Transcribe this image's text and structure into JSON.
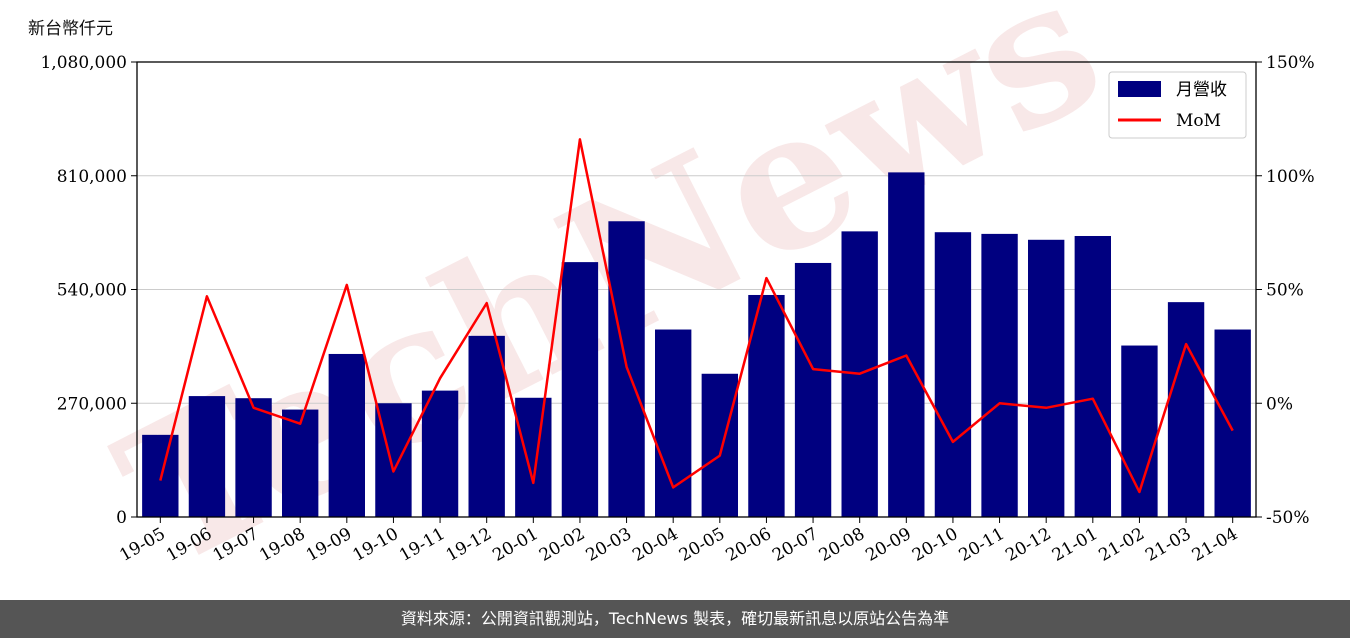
{
  "unit_label": "新台幣仟元",
  "footer_text": "資料來源：公開資訊觀測站，TechNews 製表，確切最新訊息以原站公告為準",
  "watermark_text": "TechNews",
  "chart_data": {
    "type": "bar",
    "categories": [
      "19-05",
      "19-06",
      "19-07",
      "19-08",
      "19-09",
      "19-10",
      "19-11",
      "19-12",
      "20-01",
      "20-02",
      "20-03",
      "20-04",
      "20-05",
      "20-06",
      "20-07",
      "20-08",
      "20-09",
      "20-10",
      "20-11",
      "20-12",
      "21-01",
      "21-02",
      "21-03",
      "21-04"
    ],
    "series": [
      {
        "name": "月營收",
        "type": "bar",
        "axis": "left",
        "color": "#000080",
        "values": [
          195000,
          287000,
          282000,
          255000,
          387000,
          270000,
          300000,
          430000,
          283000,
          605000,
          702000,
          445000,
          340000,
          527000,
          603000,
          678000,
          818000,
          676000,
          672000,
          658000,
          667000,
          407000,
          510000,
          445000
        ]
      },
      {
        "name": "MoM",
        "type": "line",
        "axis": "right",
        "color": "#ff0000",
        "values": [
          -34,
          47,
          -2,
          -9,
          52,
          -30,
          11,
          44,
          -35,
          116,
          16,
          -37,
          -23,
          55,
          15,
          13,
          21,
          -17,
          0,
          -2,
          2,
          -39,
          26,
          -12
        ]
      }
    ],
    "y_left": {
      "min": 0,
      "max": 1080000,
      "ticks": [
        0,
        270000,
        540000,
        810000,
        1080000
      ],
      "tick_labels": [
        "0",
        "270,000",
        "540,000",
        "810,000",
        "1,080,000"
      ]
    },
    "y_right": {
      "min": -50,
      "max": 150,
      "ticks": [
        -50,
        0,
        50,
        100,
        150
      ],
      "tick_labels": [
        "-50%",
        "0%",
        "50%",
        "100%",
        "150%"
      ]
    },
    "grid": true,
    "legend_position": "top-right"
  }
}
